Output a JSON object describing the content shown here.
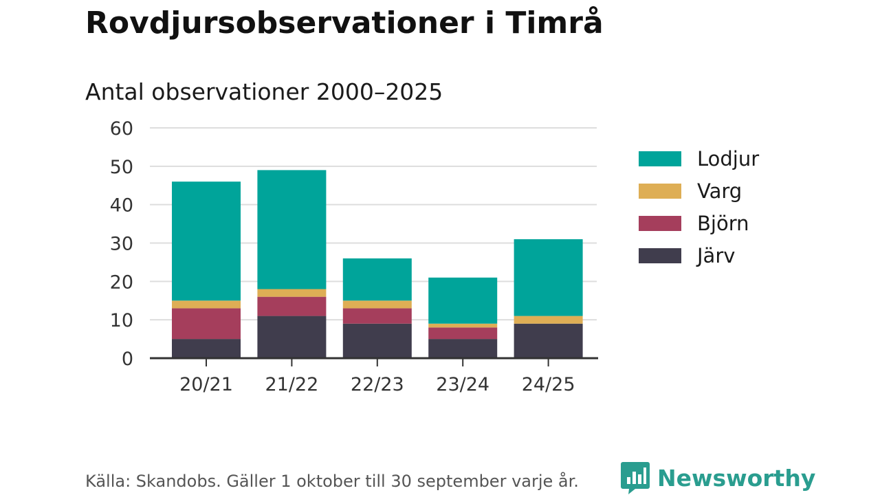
{
  "header": {
    "title": "Rovdjursobservationer i Timrå",
    "subtitle": "Antal observationer 2000–2025"
  },
  "footer": {
    "source": "Källa: Skandobs. Gäller 1 oktober till 30 september varje år.",
    "brand": "Newsworthy",
    "brand_icon": "newsworthy-logo-icon"
  },
  "colors": {
    "Lodjur": "#00a49a",
    "Varg": "#deae55",
    "Björn": "#a53e5c",
    "Järv": "#403d4d",
    "grid": "#dddddd",
    "axis": "#333333",
    "brand": "#2a9d8f"
  },
  "chart_data": {
    "type": "bar",
    "stacked": true,
    "title": "Rovdjursobservationer i Timrå",
    "subtitle": "Antal observationer 2000–2025",
    "xlabel": "",
    "ylabel": "",
    "ylim": [
      0,
      60
    ],
    "yticks": [
      0,
      10,
      20,
      30,
      40,
      50,
      60
    ],
    "grid": true,
    "legend_position": "right",
    "categories": [
      "20/21",
      "21/22",
      "22/23",
      "23/24",
      "24/25"
    ],
    "series": [
      {
        "name": "Järv",
        "values": [
          5,
          11,
          9,
          5,
          9
        ]
      },
      {
        "name": "Björn",
        "values": [
          8,
          5,
          4,
          3,
          0
        ]
      },
      {
        "name": "Varg",
        "values": [
          2,
          2,
          2,
          1,
          2
        ]
      },
      {
        "name": "Lodjur",
        "values": [
          31,
          31,
          11,
          12,
          20
        ]
      }
    ],
    "legend_order": [
      "Lodjur",
      "Varg",
      "Björn",
      "Järv"
    ]
  }
}
